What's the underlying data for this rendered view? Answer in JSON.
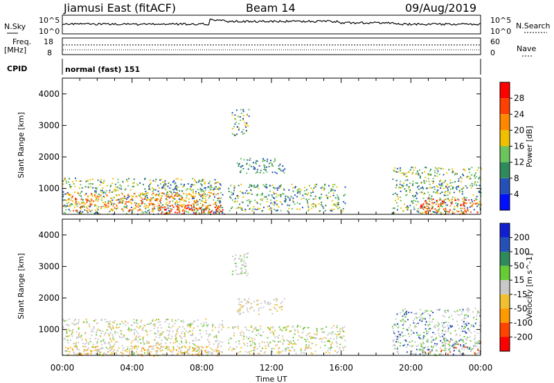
{
  "header": {
    "station": "Jiamusi East (fitACF)",
    "beam": "Beam 14",
    "date": "09/Aug/2019"
  },
  "strip": {
    "nsky_label": "N.Sky",
    "nsearch_label": "N.Search",
    "nsky_ticks": [
      "10^5",
      "10^0"
    ],
    "nsearch_ticks": [
      "10^5",
      "10^0"
    ],
    "freq_label": "Freq.",
    "freq_unit": "[MHz]",
    "freq_ticks": [
      "18",
      "8"
    ],
    "nave_label": "Nave",
    "nave_ticks": [
      "60",
      "0"
    ],
    "cpid_label": "CPID",
    "cpid_value": "normal (fast) 151"
  },
  "chart_data": [
    {
      "type": "heatmap",
      "name": "power",
      "ylabel": "Slant Range [km]",
      "xlabel": "",
      "xlim": [
        0,
        24
      ],
      "ylim": [
        180,
        4500
      ],
      "y_ticks": [
        1000,
        2000,
        3000,
        4000
      ],
      "colorbar_label": "Power [dB]",
      "colorbar_ticks": [
        "4",
        "8",
        "12",
        "16",
        "20",
        "24",
        "28"
      ],
      "colorbar_colors": [
        "#0010ff",
        "#2450b8",
        "#2e8a5a",
        "#6cc45c",
        "#f0c000",
        "#ff8800",
        "#ff4000",
        "#ff0000"
      ],
      "blobs": [
        {
          "t": [
            0.0,
            9.2
          ],
          "r": [
            200,
            1350
          ],
          "c": [
            "#2450b8",
            "#2e8a5a",
            "#6cc45c",
            "#f0c000"
          ]
        },
        {
          "t": [
            0.0,
            9.0
          ],
          "r": [
            300,
            900
          ],
          "c": [
            "#ff8800",
            "#ff4000",
            "#f0c000"
          ]
        },
        {
          "t": [
            5.5,
            9.3
          ],
          "r": [
            200,
            500
          ],
          "c": [
            "#ff0000",
            "#ff4000"
          ]
        },
        {
          "t": [
            9.7,
            10.7
          ],
          "r": [
            2700,
            3550
          ],
          "c": [
            "#f0c000",
            "#6cc45c",
            "#2450b8"
          ]
        },
        {
          "t": [
            10.0,
            12.8
          ],
          "r": [
            1500,
            2000
          ],
          "c": [
            "#6cc45c",
            "#2e8a5a",
            "#2450b8"
          ]
        },
        {
          "t": [
            9.5,
            16.2
          ],
          "r": [
            300,
            1150
          ],
          "c": [
            "#2450b8",
            "#6cc45c",
            "#2e8a5a",
            "#f0c000"
          ]
        },
        {
          "t": [
            18.9,
            24.0
          ],
          "r": [
            200,
            1700
          ],
          "c": [
            "#2450b8",
            "#2e8a5a",
            "#6cc45c",
            "#f0c000"
          ]
        },
        {
          "t": [
            20.5,
            24.0
          ],
          "r": [
            200,
            700
          ],
          "c": [
            "#ff4000",
            "#ff0000",
            "#ff8800"
          ]
        }
      ]
    },
    {
      "type": "heatmap",
      "name": "velocity",
      "ylabel": "Slant Range [km]",
      "xlabel": "Time UT",
      "xlim": [
        0,
        24
      ],
      "ylim": [
        180,
        4500
      ],
      "x_ticks": [
        "00:00",
        "04:00",
        "08:00",
        "12:00",
        "16:00",
        "20:00",
        "00:00"
      ],
      "y_ticks": [
        1000,
        2000,
        3000,
        4000
      ],
      "colorbar_label": "Velocity [m s^-1]",
      "colorbar_ticks": [
        "-200",
        "-100",
        "-50",
        "-15",
        "15",
        "50",
        "100",
        "200"
      ],
      "colorbar_colors": [
        "#ff0000",
        "#ff4400",
        "#ff9900",
        "#f0c030",
        "#c8c8c8",
        "#66cc33",
        "#2e8a5a",
        "#2450b8",
        "#1020d0"
      ],
      "blobs": [
        {
          "t": [
            0.0,
            9.2
          ],
          "r": [
            200,
            1350
          ],
          "c": [
            "#c8c8c8",
            "#c8c8c8",
            "#c8c8c8",
            "#f0c030",
            "#66cc33"
          ]
        },
        {
          "t": [
            0.0,
            9.0
          ],
          "r": [
            180,
            500
          ],
          "c": [
            "#f0c030",
            "#c8c8c8",
            "#ff9900"
          ]
        },
        {
          "t": [
            9.7,
            10.7
          ],
          "r": [
            2700,
            3550
          ],
          "c": [
            "#c8c8c8",
            "#c8c8c8",
            "#66cc33"
          ]
        },
        {
          "t": [
            10.0,
            12.8
          ],
          "r": [
            1500,
            2000
          ],
          "c": [
            "#c8c8c8",
            "#c8c8c8",
            "#f0c030"
          ]
        },
        {
          "t": [
            9.5,
            16.2
          ],
          "r": [
            250,
            1150
          ],
          "c": [
            "#c8c8c8",
            "#c8c8c8",
            "#66cc33",
            "#f0c030"
          ]
        },
        {
          "t": [
            18.9,
            24.0
          ],
          "r": [
            200,
            1700
          ],
          "c": [
            "#c8c8c8",
            "#c8c8c8",
            "#c8c8c8",
            "#66cc33",
            "#2450b8"
          ]
        },
        {
          "t": [
            20.5,
            24.0
          ],
          "r": [
            200,
            700
          ],
          "c": [
            "#c8c8c8",
            "#66cc33",
            "#2450b8",
            "#ff4400"
          ]
        }
      ]
    }
  ]
}
